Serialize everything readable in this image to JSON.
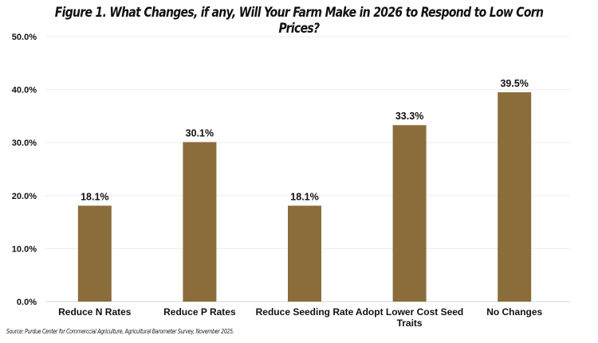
{
  "chart_data": {
    "type": "bar",
    "title": "Figure 1.  What Changes, if any, Will Your Farm Make in 2026 to Respond to Low Corn Prices?",
    "categories": [
      "Reduce N Rates",
      "Reduce P Rates",
      "Reduce Seeding Rate",
      "Adopt Lower Cost Seed Traits",
      "No Changes"
    ],
    "values": [
      18.1,
      30.1,
      18.1,
      33.3,
      39.5
    ],
    "data_labels": [
      "18.1%",
      "30.1%",
      "18.1%",
      "33.3%",
      "39.5%"
    ],
    "yticks": [
      "0.0%",
      "10.0%",
      "20.0%",
      "30.0%",
      "40.0%",
      "50.0%"
    ],
    "ylim": [
      0,
      50
    ],
    "xlabel": "",
    "ylabel": "",
    "grid": true,
    "bar_color": "#8B6D3C",
    "source": "Source: Purdue Center for Commerccial Agriculture, Agricultural Barometer Survey, November 2025."
  }
}
